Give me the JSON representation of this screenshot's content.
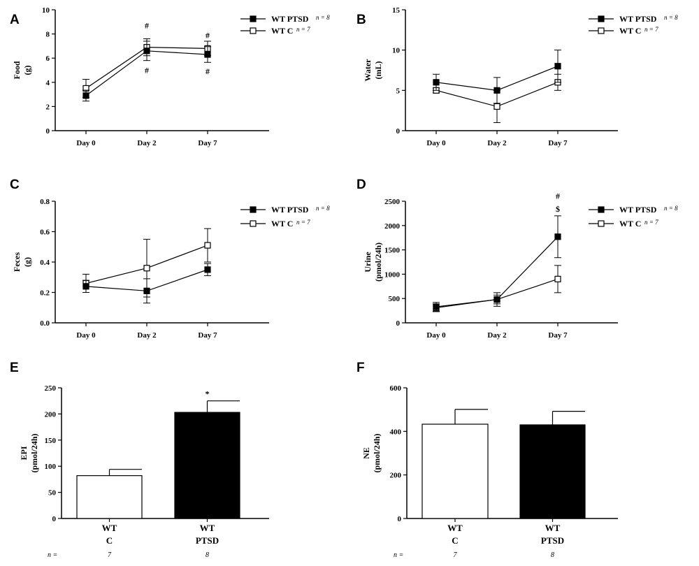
{
  "figure": {
    "groups": {
      "ptsd": "WT PTSD",
      "control": "WT C"
    },
    "n_labels": {
      "ptsd": "n = 8",
      "control": "n = 7"
    }
  },
  "chart_data": [
    {
      "panel": "A",
      "type": "line",
      "ylabel": [
        "Food",
        "(g)"
      ],
      "categories": [
        "Day 0",
        "Day 2",
        "Day 7"
      ],
      "ylim": [
        0,
        10
      ],
      "yticks": [
        0,
        2,
        4,
        6,
        8,
        10
      ],
      "series": [
        {
          "name": "WT PTSD",
          "n": "n = 8",
          "marker": "filled-square",
          "values": [
            2.9,
            6.6,
            6.3
          ],
          "err": [
            0.45,
            0.8,
            0.65
          ]
        },
        {
          "name": "WT C",
          "n": "n = 7",
          "marker": "open-square",
          "values": [
            3.5,
            6.9,
            6.8
          ],
          "err": [
            0.75,
            0.7,
            0.6
          ]
        }
      ],
      "annotations": [
        {
          "category": "Day 2",
          "text": "#",
          "value": 8.7
        },
        {
          "category": "Day 2",
          "text": "#",
          "value": 5.0
        },
        {
          "category": "Day 7",
          "text": "#",
          "value": 7.9
        },
        {
          "category": "Day 7",
          "text": "#",
          "value": 4.9
        }
      ]
    },
    {
      "panel": "B",
      "type": "line",
      "ylabel": [
        "Water",
        "(mL)"
      ],
      "categories": [
        "Day 0",
        "Day 2",
        "Day 7"
      ],
      "ylim": [
        0,
        15
      ],
      "yticks": [
        0,
        5,
        10,
        15
      ],
      "series": [
        {
          "name": "WT PTSD",
          "n": "n = 8",
          "marker": "filled-square",
          "values": [
            6.0,
            5.0,
            8.0
          ],
          "err": [
            1.0,
            1.6,
            2.0
          ]
        },
        {
          "name": "WT C",
          "n": "n = 7",
          "marker": "open-square",
          "values": [
            5.0,
            3.0,
            6.0
          ],
          "err": [
            0.3,
            2.0,
            1.0
          ]
        }
      ],
      "annotations": []
    },
    {
      "panel": "C",
      "type": "line",
      "ylabel": [
        "Feces",
        "(g)"
      ],
      "categories": [
        "Day 0",
        "Day 2",
        "Day 7"
      ],
      "ylim": [
        0,
        0.8
      ],
      "yticks": [
        0.0,
        0.2,
        0.4,
        0.6,
        0.8
      ],
      "series": [
        {
          "name": "WT PTSD",
          "n": "n = 8",
          "marker": "filled-square",
          "values": [
            0.24,
            0.21,
            0.35
          ],
          "err": [
            0.04,
            0.08,
            0.04
          ]
        },
        {
          "name": "WT C",
          "n": "n = 7",
          "marker": "open-square",
          "values": [
            0.26,
            0.36,
            0.51
          ],
          "err": [
            0.06,
            0.19,
            0.11
          ]
        }
      ],
      "annotations": []
    },
    {
      "panel": "D",
      "type": "line",
      "ylabel": [
        "Urine",
        "(pmol/24h)"
      ],
      "categories": [
        "Day 0",
        "Day 2",
        "Day 7"
      ],
      "ylim": [
        0,
        2500
      ],
      "yticks": [
        0,
        500,
        1000,
        1500,
        2000,
        2500
      ],
      "series": [
        {
          "name": "WT PTSD",
          "n": "n = 8",
          "marker": "filled-square",
          "values": [
            330,
            480,
            1770
          ],
          "err": [
            90,
            140,
            430
          ]
        },
        {
          "name": "WT C",
          "n": "n = 7",
          "marker": "open-square",
          "values": [
            310,
            480,
            900
          ],
          "err": [
            80,
            90,
            280
          ]
        }
      ],
      "annotations": [
        {
          "category": "Day 7",
          "text": "#",
          "value": 2610
        },
        {
          "category": "Day 7",
          "text": "$",
          "value": 2340
        }
      ]
    },
    {
      "panel": "E",
      "type": "bar",
      "ylabel": [
        "EPI",
        "(pmol/24h)"
      ],
      "categories": [
        [
          "WT",
          "C"
        ],
        [
          "WT",
          "PTSD"
        ]
      ],
      "ylim": [
        0,
        250
      ],
      "yticks": [
        0,
        50,
        100,
        150,
        200,
        250
      ],
      "values": [
        82,
        203
      ],
      "err": [
        12,
        22
      ],
      "fills": [
        "#ffffff",
        "#000000"
      ],
      "n_label": "n =",
      "n_values": [
        "7",
        "8"
      ],
      "annotations": [
        {
          "bar": 1,
          "text": "*"
        }
      ]
    },
    {
      "panel": "F",
      "type": "bar",
      "ylabel": [
        "NE",
        "(pmol/24h)"
      ],
      "categories": [
        [
          "WT",
          "C"
        ],
        [
          "WT",
          "PTSD"
        ]
      ],
      "ylim": [
        0,
        600
      ],
      "yticks": [
        0,
        200,
        400,
        600
      ],
      "values": [
        433,
        430
      ],
      "err": [
        68,
        62
      ],
      "fills": [
        "#ffffff",
        "#000000"
      ],
      "n_label": "n =",
      "n_values": [
        "7",
        "8"
      ],
      "annotations": []
    }
  ]
}
